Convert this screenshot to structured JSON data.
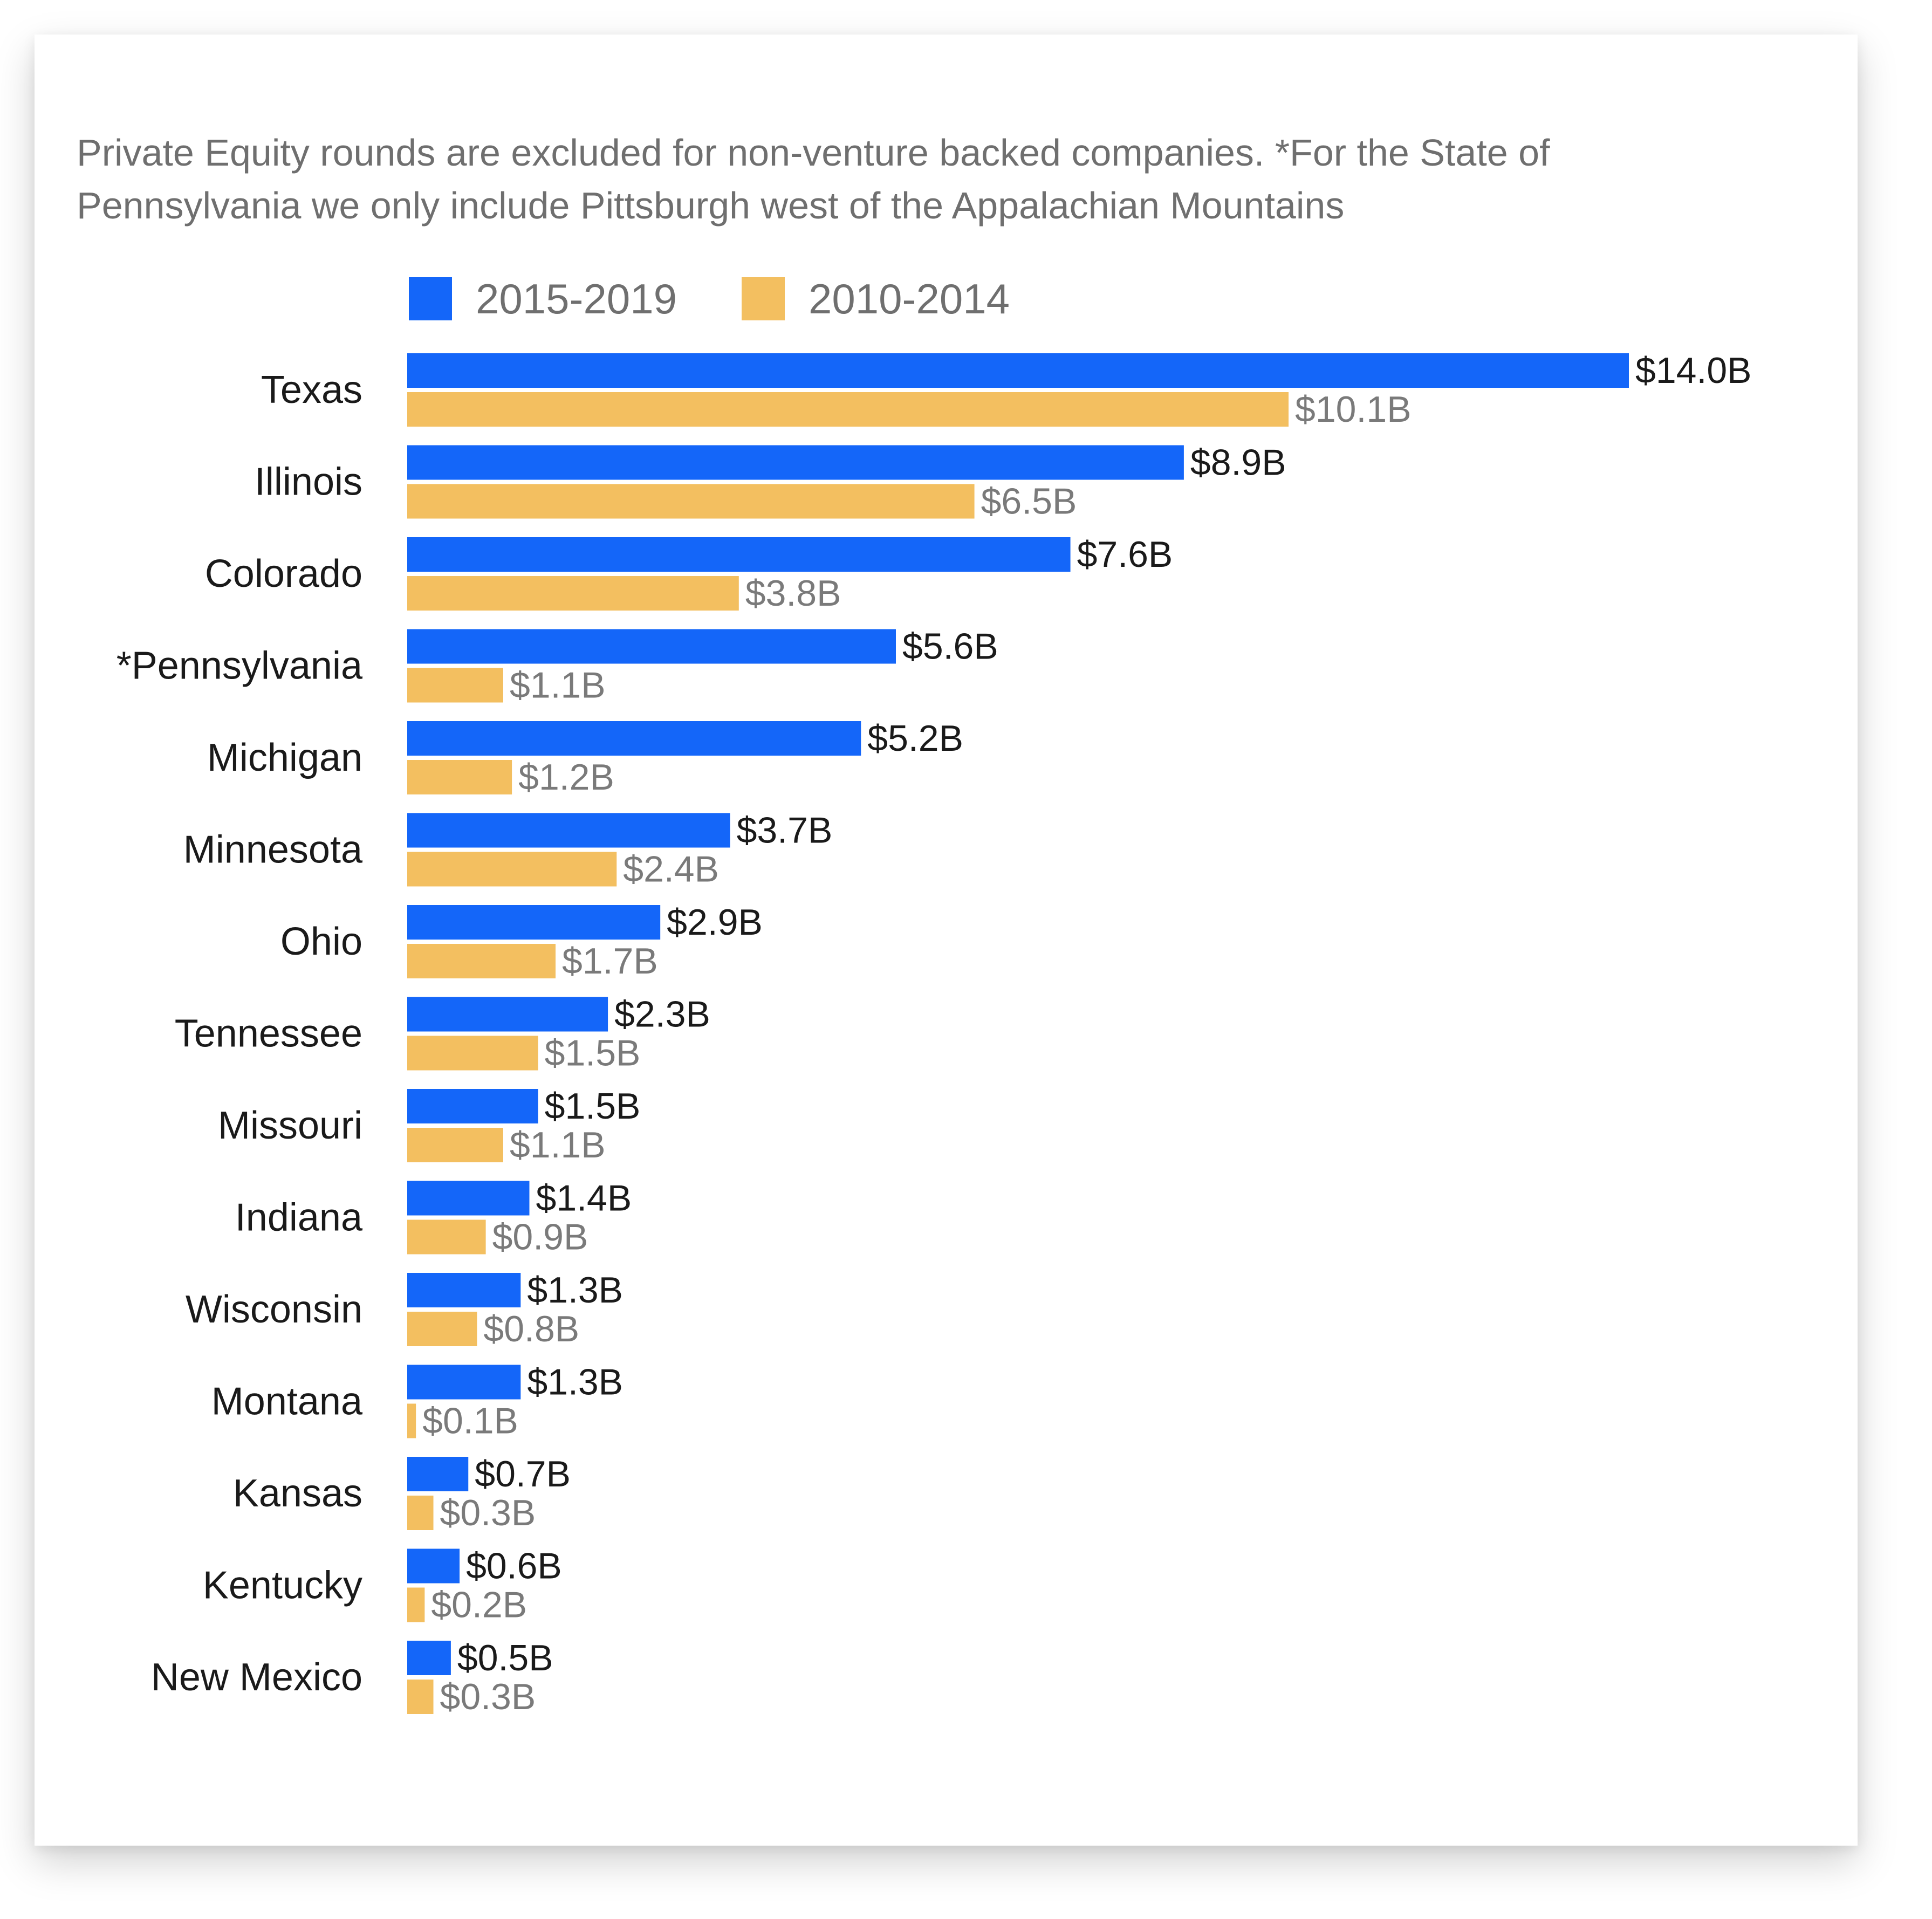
{
  "chart_data": {
    "type": "bar",
    "orientation": "horizontal",
    "note": "Private Equity rounds are excluded for non-venture backed companies. *For the State of Pennsylvania we only include Pittsburgh west of the Appalachian Mountains",
    "categories": [
      "Texas",
      "Illinois",
      "Colorado",
      "*Pennsylvania",
      "Michigan",
      "Minnesota",
      "Ohio",
      "Tennessee",
      "Missouri",
      "Indiana",
      "Wisconsin",
      "Montana",
      "Kansas",
      "Kentucky",
      "New Mexico"
    ],
    "series": [
      {
        "name": "2015-2019",
        "color": "#1466f9",
        "values": [
          14.0,
          8.9,
          7.6,
          5.6,
          5.2,
          3.7,
          2.9,
          2.3,
          1.5,
          1.4,
          1.3,
          1.3,
          0.7,
          0.6,
          0.5
        ],
        "labels": [
          "$14.0B",
          "$8.9B",
          "$7.6B",
          "$5.6B",
          "$5.2B",
          "$3.7B",
          "$2.9B",
          "$2.3B",
          "$1.5B",
          "$1.4B",
          "$1.3B",
          "$1.3B",
          "$0.7B",
          "$0.6B",
          "$0.5B"
        ]
      },
      {
        "name": "2010-2014",
        "color": "#f3bf60",
        "values": [
          10.1,
          6.5,
          3.8,
          1.1,
          1.2,
          2.4,
          1.7,
          1.5,
          1.1,
          0.9,
          0.8,
          0.1,
          0.3,
          0.2,
          0.3
        ],
        "labels": [
          "$10.1B",
          "$6.5B",
          "$3.8B",
          "$1.1B",
          "$1.2B",
          "$2.4B",
          "$1.7B",
          "$1.5B",
          "$1.1B",
          "$0.9B",
          "$0.8B",
          "$0.1B",
          "$0.3B",
          "$0.2B",
          "$0.3B"
        ]
      }
    ],
    "xlim": [
      0,
      14.0
    ],
    "legend": "top",
    "grid": false
  }
}
